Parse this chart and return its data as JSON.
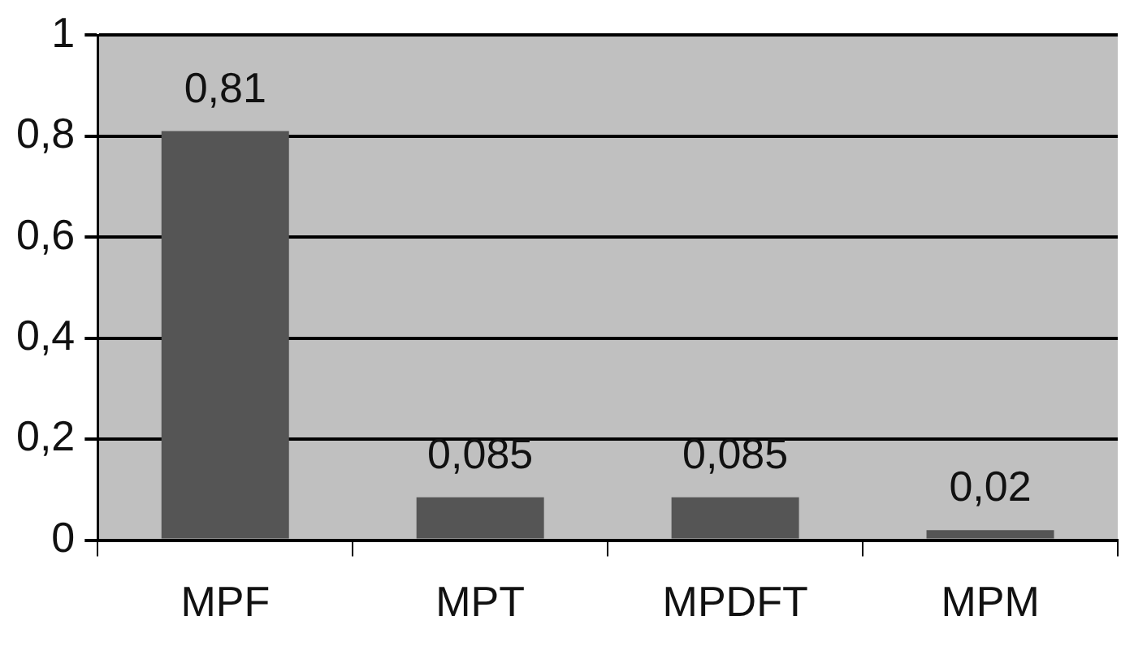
{
  "chart_data": {
    "type": "bar",
    "categories": [
      "MPF",
      "MPT",
      "MPDFT",
      "MPM"
    ],
    "values": [
      0.81,
      0.085,
      0.085,
      0.02
    ],
    "value_labels": [
      "0,81",
      "0,085",
      "0,085",
      "0,02"
    ],
    "color": "#555555",
    "ylim": [
      0,
      1
    ],
    "yticks": [
      {
        "value": 0,
        "label": "0"
      },
      {
        "value": 0.2,
        "label": "0,2"
      },
      {
        "value": 0.4,
        "label": "0,4"
      },
      {
        "value": 0.6,
        "label": "0,6"
      },
      {
        "value": 0.8,
        "label": "0,8"
      },
      {
        "value": 1,
        "label": "1"
      }
    ],
    "grid": "y",
    "legend": false
  }
}
